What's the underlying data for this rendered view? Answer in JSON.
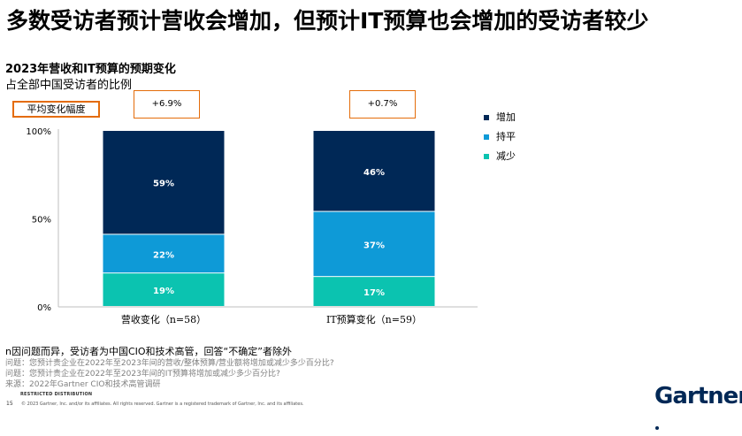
{
  "slide_title": "多数受访者预计营收会增加，但预计IT预算也会增加的受访者较少",
  "chart_title": "2023年营收和IT预算的预期变化",
  "chart_subtitle": "占全部中国受访者的比例",
  "avg_label": "平均变化幅度",
  "chart_data": {
    "type": "bar",
    "stacked": true,
    "categories": [
      "营收变化（n=58）",
      "IT预算变化（n=59）"
    ],
    "series": [
      {
        "name": "减少",
        "values": [
          19,
          17
        ],
        "labels": [
          "19%",
          "17%"
        ],
        "color": "#0bc3b0"
      },
      {
        "name": "持平",
        "values": [
          22,
          37
        ],
        "labels": [
          "22%",
          "37%"
        ],
        "color": "#0e9ad7"
      },
      {
        "name": "增加",
        "values": [
          59,
          46
        ],
        "labels": [
          "59%",
          "46%"
        ],
        "color": "#002856"
      }
    ],
    "average_change": [
      "+6.9%",
      "+0.7%"
    ],
    "yticks": [
      "0%",
      "50%",
      "100%"
    ],
    "ylim": [
      0,
      100
    ],
    "legend_position": "right"
  },
  "footnote": "n因问题而异，受访者为中国CIO和技术高管，回答“不确定”者除外",
  "questions": [
    "问题：您预计贵企业在2022年至2023年间的营收/整体预算/营业额将增加或减少多少百分比?",
    "问题：您预计贵企业在2022年至2023年间的IT预算将增加或减少多少百分比?",
    "来源：2022年Gartner CIO和技术高管调研"
  ],
  "restricted": "RESTRICTED DISTRIBUTION",
  "page_number": "15",
  "copyright": "© 2023 Gartner, Inc. and/or its affiliates. All rights reserved. Gartner is a registered trademark of Gartner, Inc. and its affiliates.",
  "logo_text": "Gartner"
}
